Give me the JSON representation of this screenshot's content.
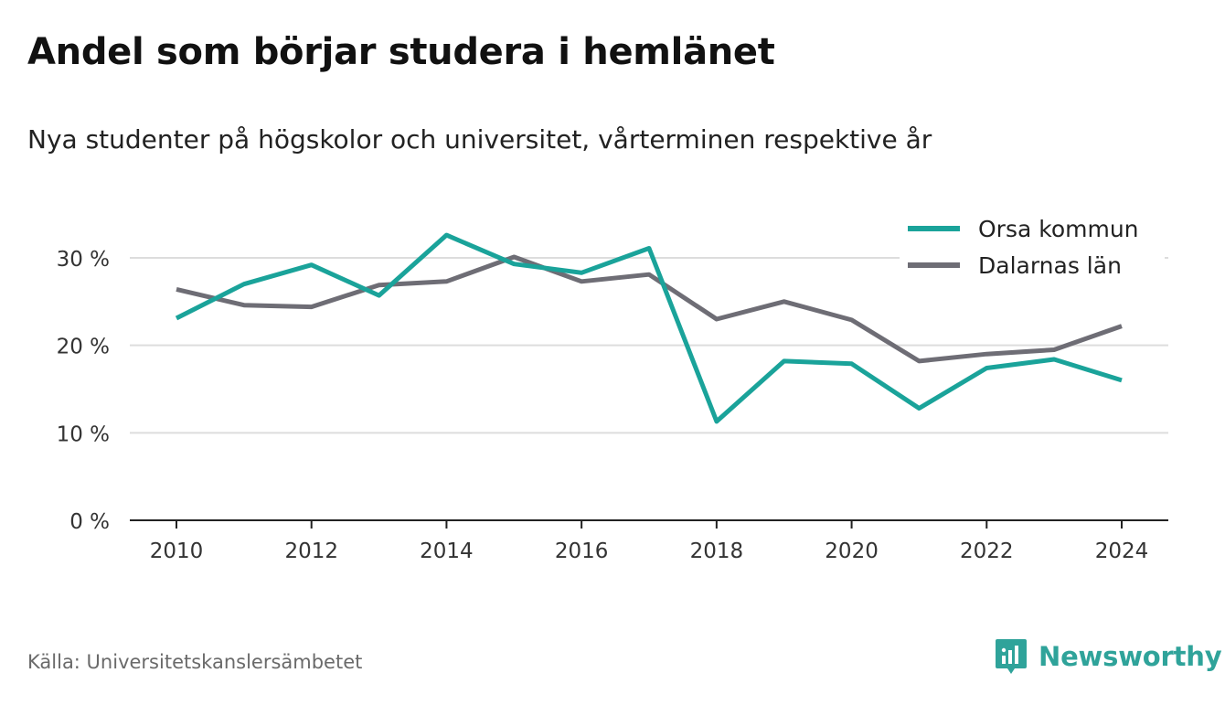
{
  "title": "Andel som börjar studera i hemlänet",
  "subtitle": "Nya studenter på högskolor och universitet, vårterminen respektive år",
  "source": "Källa: Universitetskanslersämbetet",
  "brand": {
    "name": "Newsworthy",
    "icon": "newsworthy-logo-icon",
    "color": "#2fa39a"
  },
  "chart_data": {
    "type": "line",
    "x": [
      2010,
      2011,
      2012,
      2013,
      2014,
      2015,
      2016,
      2017,
      2018,
      2019,
      2020,
      2021,
      2022,
      2023,
      2024
    ],
    "x_ticks": [
      "2010",
      "2012",
      "2014",
      "2016",
      "2018",
      "2020",
      "2022",
      "2024"
    ],
    "xlim": [
      2009.3,
      2024.75
    ],
    "y_ticks": [
      "0 %",
      "10 %",
      "20 %",
      "30 %"
    ],
    "y_tick_values": [
      0,
      10,
      20,
      30
    ],
    "ylim": [
      0,
      35
    ],
    "grid": true,
    "legend_position": "top-right",
    "series": [
      {
        "name": "Orsa kommun",
        "color": "#1aa39a",
        "values": [
          23.1,
          27.0,
          29.2,
          25.7,
          32.6,
          29.3,
          28.3,
          31.1,
          11.3,
          18.2,
          17.9,
          12.8,
          17.4,
          18.4,
          16.0
        ]
      },
      {
        "name": "Dalarnas län",
        "color": "#6e6d75",
        "values": [
          26.4,
          24.6,
          24.4,
          26.9,
          27.3,
          30.1,
          27.3,
          28.1,
          23.0,
          25.0,
          22.9,
          18.2,
          19.0,
          19.5,
          22.2
        ]
      }
    ]
  }
}
